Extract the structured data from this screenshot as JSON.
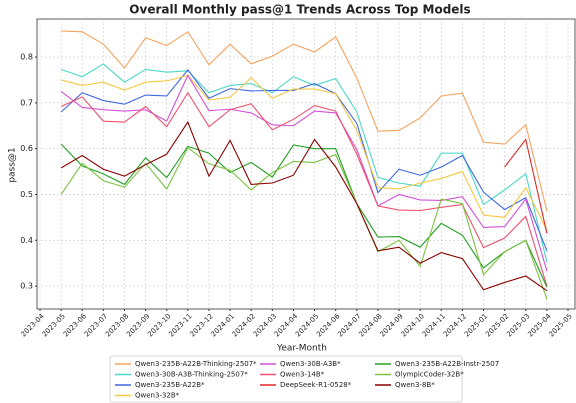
{
  "chart_data": {
    "type": "line",
    "title": "Overall Monthly pass@1 Trends Across Top Models",
    "xlabel": "Year-Month",
    "ylabel": "pass@1",
    "categories": [
      "2023-04",
      "2023-05",
      "2023-06",
      "2023-07",
      "2023-08",
      "2023-09",
      "2023-10",
      "2023-11",
      "2023-12",
      "2024-01",
      "2024-02",
      "2024-03",
      "2024-04",
      "2024-05",
      "2024-06",
      "2024-07",
      "2024-08",
      "2024-09",
      "2024-10",
      "2024-11",
      "2024-12",
      "2025-01",
      "2025-02",
      "2025-03",
      "2025-04",
      "2025-05"
    ],
    "ylim": [
      0.25,
      0.883
    ],
    "yticks": [
      0.3,
      0.4,
      0.5,
      0.6,
      0.7,
      0.8
    ],
    "grid": true,
    "series": [
      {
        "name": "Qwen3-235B-A22B-Thinking-2507*",
        "color": "#f5a25d",
        "values": [
          null,
          0.857,
          0.855,
          0.828,
          0.776,
          0.842,
          0.825,
          0.855,
          0.783,
          0.828,
          0.785,
          0.802,
          0.828,
          0.811,
          0.844,
          0.754,
          0.638,
          0.64,
          0.667,
          0.715,
          0.721,
          0.614,
          0.61,
          0.652,
          0.464,
          null
        ]
      },
      {
        "name": "Qwen3-30B-A3B-Thinking-2507*",
        "color": "#4ed8c8",
        "values": [
          null,
          0.773,
          0.757,
          0.785,
          0.745,
          0.773,
          0.767,
          0.77,
          0.722,
          0.738,
          0.742,
          0.722,
          0.757,
          0.738,
          0.753,
          0.68,
          0.537,
          0.525,
          0.518,
          0.59,
          0.59,
          0.478,
          0.51,
          0.545,
          0.352,
          null
        ]
      },
      {
        "name": "Qwen3-235B-A22B*",
        "color": "#4169e1",
        "values": [
          null,
          0.68,
          0.722,
          0.705,
          0.697,
          0.717,
          0.715,
          0.772,
          0.71,
          0.731,
          0.726,
          0.727,
          0.727,
          0.742,
          0.72,
          0.655,
          0.504,
          0.555,
          0.542,
          0.56,
          0.585,
          0.505,
          0.467,
          0.493,
          0.377,
          null
        ]
      },
      {
        "name": "Qwen3-32B*",
        "color": "#f5c842",
        "values": [
          null,
          0.75,
          0.738,
          0.745,
          0.728,
          0.745,
          0.748,
          0.76,
          0.706,
          0.712,
          0.755,
          0.71,
          0.73,
          0.73,
          0.72,
          0.64,
          0.515,
          0.512,
          0.525,
          0.535,
          0.55,
          0.455,
          0.45,
          0.515,
          0.422,
          null
        ]
      },
      {
        "name": "Qwen3-30B-A3B*",
        "color": "#d451d8",
        "values": [
          null,
          0.725,
          0.69,
          0.685,
          0.682,
          0.685,
          0.66,
          0.76,
          0.683,
          0.686,
          0.678,
          0.652,
          0.65,
          0.682,
          0.678,
          0.598,
          0.475,
          0.5,
          0.488,
          0.487,
          0.495,
          0.428,
          0.43,
          0.49,
          0.333,
          null
        ]
      },
      {
        "name": "Qwen3-14B*",
        "color": "#f0506e",
        "values": [
          null,
          0.692,
          0.713,
          0.66,
          0.658,
          0.692,
          0.648,
          0.722,
          0.648,
          0.685,
          0.698,
          0.641,
          0.664,
          0.694,
          0.682,
          0.588,
          0.475,
          0.466,
          0.465,
          0.472,
          0.478,
          0.384,
          0.405,
          0.452,
          0.3,
          null
        ]
      },
      {
        "name": "DeepSeek-R1-0528*",
        "color": "#e02828",
        "values": [
          null,
          null,
          null,
          null,
          null,
          null,
          null,
          null,
          null,
          null,
          null,
          null,
          null,
          null,
          null,
          null,
          null,
          null,
          null,
          null,
          null,
          null,
          0.56,
          0.62,
          0.415,
          null
        ]
      },
      {
        "name": "Qwen3-235B-A22B-Instr-2507",
        "color": "#22a022",
        "values": [
          null,
          0.61,
          0.562,
          0.545,
          0.522,
          0.58,
          0.537,
          0.605,
          0.59,
          0.548,
          0.57,
          0.538,
          0.608,
          0.6,
          0.6,
          0.48,
          0.407,
          0.408,
          0.385,
          0.437,
          0.411,
          0.34,
          0.375,
          0.4,
          0.298,
          null
        ]
      },
      {
        "name": "OlympicCoder-32B*",
        "color": "#7cc242",
        "values": [
          null,
          0.5,
          0.568,
          0.53,
          0.516,
          0.568,
          0.512,
          0.602,
          0.567,
          0.553,
          0.51,
          0.548,
          0.572,
          0.57,
          0.587,
          0.48,
          0.375,
          0.4,
          0.343,
          0.49,
          0.48,
          0.325,
          0.375,
          0.4,
          0.272,
          null
        ]
      },
      {
        "name": "Qwen3-8B*",
        "color": "#8b0000",
        "values": [
          null,
          0.558,
          0.585,
          0.555,
          0.54,
          0.565,
          0.588,
          0.658,
          0.54,
          0.618,
          0.522,
          0.525,
          0.542,
          0.62,
          0.56,
          0.48,
          0.377,
          0.385,
          0.35,
          0.373,
          0.36,
          0.292,
          0.308,
          0.322,
          0.29,
          null
        ]
      }
    ]
  }
}
